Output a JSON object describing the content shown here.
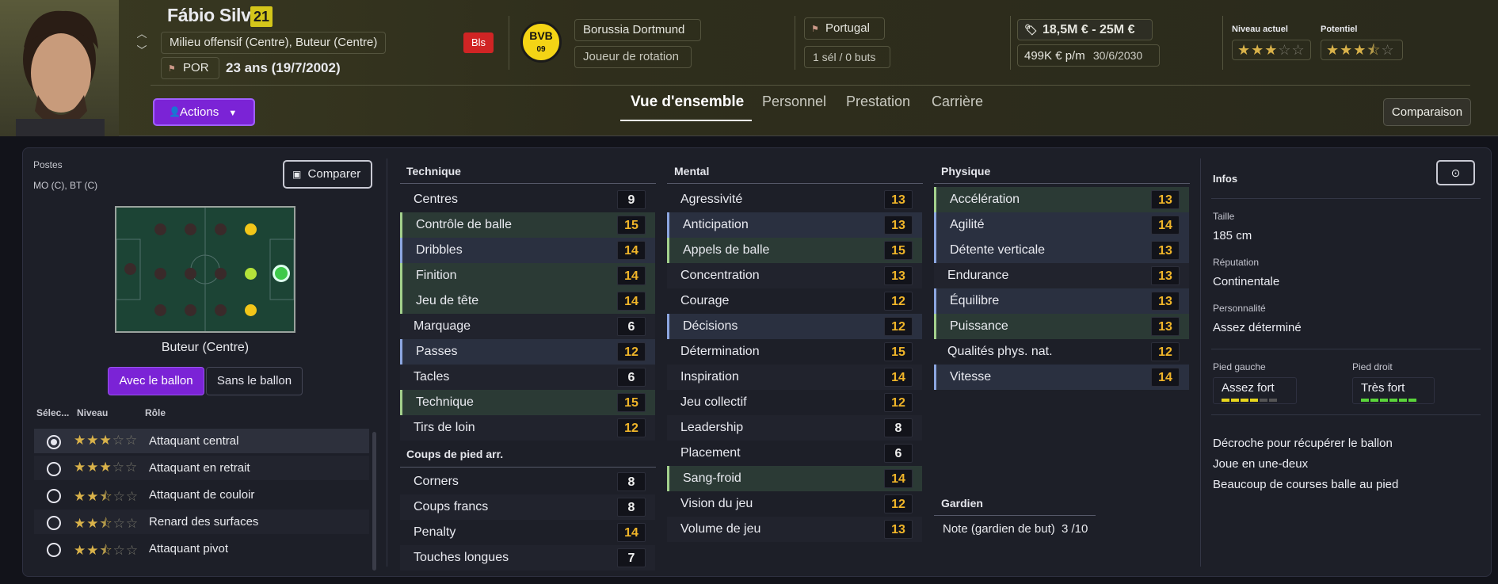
{
  "header": {
    "player_name": "Fábio Silva",
    "age_badge": "21",
    "positions_full": "Milieu offensif (Centre), Buteur (Centre)",
    "nationality_code": "POR",
    "age_text": "23 ans (19/7/2002)",
    "injury_badge": "Bls",
    "club_name": "Borussia Dortmund",
    "squad_status": "Joueur de rotation",
    "club_logo_text": "BVB",
    "club_logo_year": "09",
    "nation": "Portugal",
    "caps": "1 sél / 0 buts",
    "value_range": "18,5M € - 25M €",
    "wage": "499K € p/m",
    "contract_end": "30/6/2030",
    "current_ability_label": "Niveau actuel",
    "potential_label": "Potentiel",
    "current_ability_stars": 3,
    "potential_stars": 3.5,
    "actions_label": "Actions",
    "tabs": [
      "Vue d'ensemble",
      "Personnel",
      "Prestation",
      "Carrière"
    ],
    "active_tab": "Vue d'ensemble",
    "compare_button": "Comparaison"
  },
  "positions_panel": {
    "title": "Postes",
    "short_positions": "MO (C), BT (C)",
    "compare_button": "Comparer",
    "selected_position": "Buteur (Centre)",
    "toggle_with_ball": "Avec le ballon",
    "toggle_without_ball": "Sans le ballon",
    "col_select": "Sélec...",
    "col_level": "Niveau",
    "col_role": "Rôle",
    "roles": [
      {
        "name": "Attaquant central",
        "stars": 3,
        "selected": true
      },
      {
        "name": "Attaquant en retrait",
        "stars": 3,
        "selected": false
      },
      {
        "name": "Attaquant de couloir",
        "stars": 2.5,
        "selected": false
      },
      {
        "name": "Renard des surfaces",
        "stars": 2.5,
        "selected": false
      },
      {
        "name": "Attaquant pivot",
        "stars": 2.5,
        "selected": false
      }
    ]
  },
  "technique": {
    "title": "Technique",
    "attributes": [
      {
        "name": "Centres",
        "value": "9"
      },
      {
        "name": "Contrôle de balle",
        "value": "15"
      },
      {
        "name": "Dribbles",
        "value": "14"
      },
      {
        "name": "Finition",
        "value": "14"
      },
      {
        "name": "Jeu de tête",
        "value": "14"
      },
      {
        "name": "Marquage",
        "value": "6"
      },
      {
        "name": "Passes",
        "value": "12"
      },
      {
        "name": "Tacles",
        "value": "6"
      },
      {
        "name": "Technique",
        "value": "15"
      },
      {
        "name": "Tirs de loin",
        "value": "12"
      }
    ]
  },
  "set_pieces": {
    "title": "Coups de pied arr.",
    "attributes": [
      {
        "name": "Corners",
        "value": "8"
      },
      {
        "name": "Coups francs",
        "value": "8"
      },
      {
        "name": "Penalty",
        "value": "14"
      },
      {
        "name": "Touches longues",
        "value": "7"
      }
    ]
  },
  "mental": {
    "title": "Mental",
    "attributes": [
      {
        "name": "Agressivité",
        "value": "13"
      },
      {
        "name": "Anticipation",
        "value": "13"
      },
      {
        "name": "Appels de balle",
        "value": "15"
      },
      {
        "name": "Concentration",
        "value": "13"
      },
      {
        "name": "Courage",
        "value": "12"
      },
      {
        "name": "Décisions",
        "value": "12"
      },
      {
        "name": "Détermination",
        "value": "15"
      },
      {
        "name": "Inspiration",
        "value": "14"
      },
      {
        "name": "Jeu collectif",
        "value": "12"
      },
      {
        "name": "Leadership",
        "value": "8"
      },
      {
        "name": "Placement",
        "value": "6"
      },
      {
        "name": "Sang-froid",
        "value": "14"
      },
      {
        "name": "Vision du jeu",
        "value": "12"
      },
      {
        "name": "Volume de jeu",
        "value": "13"
      }
    ]
  },
  "physical": {
    "title": "Physique",
    "attributes": [
      {
        "name": "Accélération",
        "value": "13"
      },
      {
        "name": "Agilité",
        "value": "14"
      },
      {
        "name": "Détente verticale",
        "value": "13"
      },
      {
        "name": "Endurance",
        "value": "13"
      },
      {
        "name": "Équilibre",
        "value": "13"
      },
      {
        "name": "Puissance",
        "value": "13"
      },
      {
        "name": "Qualités phys. nat.",
        "value": "12"
      },
      {
        "name": "Vitesse",
        "value": "14"
      }
    ]
  },
  "goalkeeper": {
    "title": "Gardien",
    "rating_label": "Note (gardien de but)",
    "rating_value": "3 /10"
  },
  "info": {
    "title": "Infos",
    "height_label": "Taille",
    "height": "185 cm",
    "reputation_label": "Réputation",
    "reputation": "Continentale",
    "personality_label": "Personnalité",
    "personality": "Assez déterminé",
    "left_foot_label": "Pied gauche",
    "left_foot": "Assez fort",
    "left_foot_level": 4,
    "right_foot_label": "Pied droit",
    "right_foot": "Très fort",
    "right_foot_level": 6,
    "traits": [
      "Décroche pour récupérer le ballon",
      "Joue en une-deux",
      "Beaucoup de courses balle au pied"
    ]
  },
  "colors": {
    "accent_purple": "#7b23d6",
    "highlight_yellow": "#f0b529",
    "club_yellow": "#f4d415",
    "injury_red": "#d02424"
  }
}
